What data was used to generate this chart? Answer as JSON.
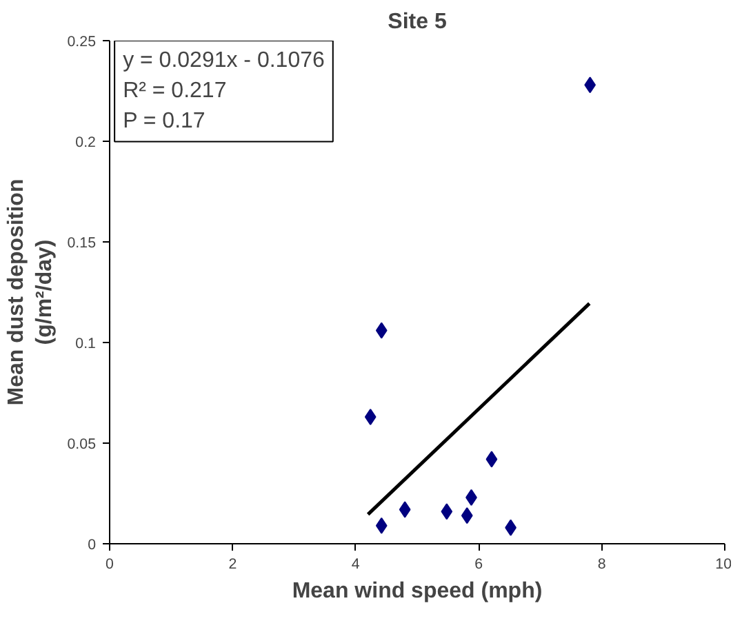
{
  "chart_data": {
    "type": "scatter",
    "title": "Site 5",
    "xlabel": "Mean wind speed (mph)",
    "ylabel": "Mean dust deposition\n(g/m²/day)",
    "series": [
      {
        "color": "#000080",
        "x": [
          4.24,
          4.42,
          4.42,
          4.8,
          5.48,
          5.81,
          5.88,
          6.21,
          6.52,
          7.81
        ],
        "values": [
          0.063,
          0.106,
          0.009,
          0.017,
          0.016,
          0.014,
          0.023,
          0.042,
          0.008,
          0.228
        ]
      },
      {
        "type": "line",
        "marker": "none",
        "color": "#000000",
        "x": [
          4.2,
          7.8
        ],
        "values": [
          0.0146,
          0.1194
        ]
      }
    ],
    "marker": "diamond",
    "xlim": [
      0,
      10
    ],
    "xticks": [
      0,
      2,
      4,
      6,
      8,
      10
    ],
    "ylim": [
      0,
      0.25
    ],
    "yticks": [
      0,
      0.05,
      0.1,
      0.15,
      0.2,
      0.25
    ],
    "grid": false,
    "annotations": [
      "y = 0.0291x - 0.1076",
      "R² = 0.217",
      "P = 0.17"
    ]
  }
}
